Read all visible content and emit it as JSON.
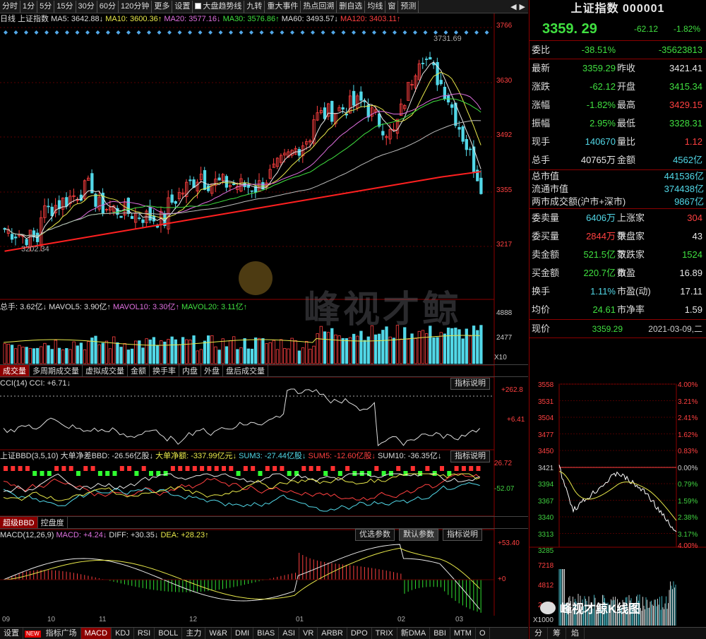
{
  "toolbar": {
    "tabs": [
      "分时",
      "1分",
      "5分",
      "15分",
      "30分",
      "60分",
      "120分钟",
      "更多",
      "设置"
    ],
    "options": [
      "大盘趋势线",
      "九转",
      "重大事件",
      "热点回溯",
      "删自选",
      "均线",
      "窗",
      "预测"
    ],
    "icons": [
      "prev-icon",
      "next-icon"
    ]
  },
  "ma": {
    "period": "日线",
    "name": "上证指数",
    "ma5": "MA5: 3642.88↓",
    "ma10": "MA10: 3600.36↑",
    "ma20": "MA20: 3577.16↓",
    "ma30": "MA30: 3576.86↑",
    "ma60": "MA60: 3493.57↓",
    "ma120": "MA120: 3403.11↑"
  },
  "kline": {
    "axis": [
      "3766",
      "3630",
      "3492",
      "3355",
      "3217"
    ],
    "high_label": "3731.69",
    "low_label": "3202.34"
  },
  "volume": {
    "label": "总手: 3.62亿↓",
    "mavol5": "MAVOL5: 3.90亿↑",
    "mavol10": "MAVOL10: 3.30亿↑",
    "mavol20": "MAVOL20: 3.11亿↑",
    "axis": [
      "4888",
      "2477",
      "X10"
    ]
  },
  "volume_tabs": [
    "成交量",
    "多周期成交量",
    "虚拟成交量",
    "金额",
    "换手率",
    "内盘",
    "外盘",
    "盘后成交量"
  ],
  "cci": {
    "label": "CCI(14) CCI: +6.71↓",
    "button": "指标说明",
    "axis": [
      "+262.8",
      "+6.41"
    ]
  },
  "bbd": {
    "label": "上证BBD(3,5,10) 大单净差BBD: -26.56亿股↓",
    "net": "大单净额: -337.99亿元↓",
    "sum3": "SUM3: -27.44亿股↓",
    "sum5": "SUM5: -12.60亿股↓",
    "sum10": "SUM10: -36.35亿↓",
    "button": "指标说明",
    "axis": [
      "26.72",
      "-52.07"
    ]
  },
  "bbd_tabs": [
    "超级BBD",
    "控盘度"
  ],
  "macd": {
    "label": "MACD(12,26,9)",
    "macd": "MACD: +4.24↓",
    "diff": "DIFF: +30.35↓",
    "dea": "DEA: +28.23↑",
    "buttons": [
      "优选参数",
      "默认参数",
      "指标说明"
    ],
    "axis": [
      "+53.40",
      "+0"
    ]
  },
  "xaxis": [
    "09",
    "10",
    "11",
    "12",
    "01",
    "02",
    "03"
  ],
  "bottom_tabs": [
    "设置",
    "NEW",
    "指标广场",
    "MACD",
    "KDJ",
    "RSI",
    "BOLL",
    "主力",
    "W&R",
    "DMI",
    "BIAS",
    "ASI",
    "VR",
    "ARBR",
    "DPO",
    "TRIX",
    "新DMA",
    "BBI",
    "MTM",
    "O"
  ],
  "watermark": "峰视才鲸",
  "right": {
    "title": "上证指数 000001",
    "price": "3359. 29",
    "change": "-62.12",
    "pct": "-1.82%",
    "weibi_k": "委比",
    "weibi_v": "-38.51%",
    "weicha_v": "-35623813",
    "rows1": [
      {
        "k": "最新",
        "v": "3359.29",
        "k2": "昨收",
        "v2": "3421.41",
        "c": "grn",
        "c2": "white"
      },
      {
        "k": "涨跌",
        "v": "-62.12",
        "k2": "开盘",
        "v2": "3415.34",
        "c": "grn",
        "c2": "grn"
      },
      {
        "k": "涨幅",
        "v": "-1.82%",
        "k2": "最高",
        "v2": "3429.15",
        "c": "grn",
        "c2": "red"
      },
      {
        "k": "振幅",
        "v": "2.95%",
        "k2": "最低",
        "v2": "3328.31",
        "c": "grn",
        "c2": "grn"
      },
      {
        "k": "现手",
        "v": "140670",
        "k2": "量比",
        "v2": "1.12",
        "c": "cyan",
        "c2": "red"
      },
      {
        "k": "总手",
        "v": "40765万",
        "k2": "金额",
        "v2": "4562亿",
        "c": "white",
        "c2": "cyan"
      }
    ],
    "rows2": [
      {
        "k": "总市值",
        "v": "441536亿"
      },
      {
        "k": "流通市值",
        "v": "374438亿"
      },
      {
        "k": "两市成交额(沪市+深市)",
        "v": "9867亿"
      }
    ],
    "rows3": [
      {
        "k": "委卖量",
        "v": "6406万",
        "k2": "上涨家数",
        "v2": "304",
        "c": "cyan",
        "c2": "red"
      },
      {
        "k": "委买量",
        "v": "2844万",
        "k2": "平盘家数",
        "v2": "43",
        "c": "red",
        "c2": "white"
      },
      {
        "k": "卖金额",
        "v": "521.5亿",
        "k2": "下跌家数",
        "v2": "1524",
        "c": "grn",
        "c2": "grn"
      },
      {
        "k": "买金额",
        "v": "220.7亿",
        "k2": "市盈",
        "v2": "16.89",
        "c": "grn",
        "c2": "white"
      },
      {
        "k": "换手",
        "v": "1.11%",
        "k2": "市盈(动)",
        "v2": "17.11",
        "c": "cyan",
        "c2": "white"
      },
      {
        "k": "均价",
        "v": "24.61",
        "k2": "市净率",
        "v2": "1.59",
        "c": "grn",
        "c2": "white"
      }
    ],
    "now_k": "现价",
    "now_v": "3359.29",
    "date": "2021-03-09,二",
    "mini_left": [
      "3558",
      "3531",
      "3504",
      "3477",
      "3450",
      "3421",
      "3394",
      "3367",
      "3340",
      "3313",
      "3285"
    ],
    "mini_right": [
      "4.00%",
      "3.21%",
      "2.41%",
      "1.62%",
      "0.83%",
      "0.00%",
      "0.79%",
      "1.59%",
      "2.38%",
      "3.17%"
    ],
    "mini_vol_right": "4.00%",
    "mini_vol": [
      "7218",
      "4812",
      "2406",
      "X1000"
    ],
    "bottom_tabs": [
      "分",
      "筹",
      "焰"
    ],
    "wechat": "峰视才鲸K线图"
  }
}
